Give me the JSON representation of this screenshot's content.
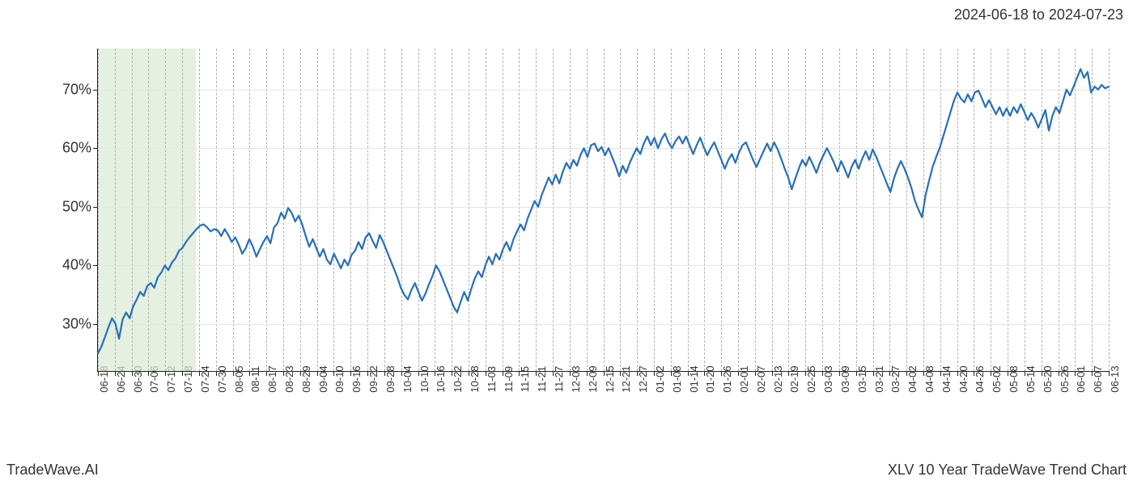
{
  "header": {
    "date_range": "2024-06-18 to 2024-07-23"
  },
  "footer": {
    "brand": "TradeWave.AI",
    "caption": "XLV 10 Year TradeWave Trend Chart"
  },
  "chart": {
    "type": "line",
    "background_color": "#ffffff",
    "grid_color_v": "#b0b0b0",
    "grid_color_h": "#e5e5e5",
    "axis_color": "#222222",
    "label_color": "#333333",
    "label_fontsize_y": 18,
    "label_fontsize_x": 13,
    "highlight": {
      "color": "#d9ead3",
      "opacity": 0.7,
      "from_idx": 0,
      "to_idx": 5.8
    },
    "y_axis": {
      "min": 22,
      "max": 77,
      "ticks": [
        30,
        40,
        50,
        60,
        70
      ],
      "tick_format_suffix": "%"
    },
    "x_axis": {
      "labels": [
        "06-18",
        "06-24",
        "06-30",
        "07-06",
        "07-12",
        "07-18",
        "07-24",
        "07-30",
        "08-05",
        "08-11",
        "08-17",
        "08-23",
        "08-29",
        "09-04",
        "09-10",
        "09-16",
        "09-22",
        "09-28",
        "10-04",
        "10-10",
        "10-16",
        "10-22",
        "10-28",
        "11-03",
        "11-09",
        "11-15",
        "11-21",
        "11-27",
        "12-03",
        "12-09",
        "12-15",
        "12-21",
        "12-27",
        "01-02",
        "01-08",
        "01-14",
        "01-20",
        "01-26",
        "02-01",
        "02-07",
        "02-13",
        "02-19",
        "02-25",
        "03-03",
        "03-09",
        "03-15",
        "03-21",
        "03-27",
        "04-02",
        "04-08",
        "04-14",
        "04-20",
        "04-26",
        "05-02",
        "05-08",
        "05-14",
        "05-20",
        "05-26",
        "06-01",
        "06-07",
        "06-13"
      ]
    },
    "series": {
      "color": "#2a6fb5",
      "line_width": 2.2,
      "values": [
        25.0,
        26.2,
        27.8,
        29.5,
        31.0,
        30.0,
        27.5,
        30.8,
        32.0,
        31.0,
        33.0,
        34.2,
        35.5,
        34.8,
        36.5,
        37.0,
        36.2,
        38.0,
        38.8,
        40.0,
        39.2,
        40.5,
        41.2,
        42.5,
        43.0,
        44.0,
        44.8,
        45.5,
        46.2,
        46.8,
        47.0,
        46.5,
        45.8,
        46.2,
        46.0,
        45.0,
        46.2,
        45.2,
        44.0,
        44.8,
        43.5,
        42.0,
        43.0,
        44.5,
        43.2,
        41.5,
        42.8,
        44.0,
        45.0,
        43.8,
        46.5,
        47.2,
        49.0,
        48.0,
        49.8,
        49.0,
        47.5,
        48.5,
        47.0,
        45.0,
        43.2,
        44.5,
        43.0,
        41.5,
        42.8,
        41.0,
        40.2,
        42.0,
        40.8,
        39.5,
        41.0,
        40.0,
        41.8,
        42.5,
        44.0,
        42.8,
        44.8,
        45.5,
        44.2,
        43.0,
        45.2,
        44.0,
        42.5,
        41.0,
        39.5,
        38.0,
        36.2,
        35.0,
        34.2,
        35.8,
        37.0,
        35.5,
        34.0,
        35.2,
        36.8,
        38.2,
        40.0,
        39.0,
        37.5,
        36.0,
        34.5,
        33.0,
        32.0,
        33.8,
        35.5,
        34.0,
        36.0,
        37.8,
        39.0,
        38.0,
        40.0,
        41.5,
        40.2,
        42.0,
        41.0,
        42.8,
        44.0,
        42.5,
        44.5,
        45.8,
        47.0,
        46.0,
        48.0,
        49.5,
        51.0,
        50.0,
        52.0,
        53.5,
        55.0,
        53.8,
        55.5,
        54.0,
        56.0,
        57.5,
        56.5,
        58.0,
        57.0,
        58.8,
        60.0,
        58.5,
        60.5,
        60.8,
        59.5,
        60.2,
        58.8,
        60.0,
        58.5,
        57.0,
        55.2,
        57.0,
        55.8,
        57.5,
        58.8,
        60.0,
        59.0,
        60.8,
        62.0,
        60.5,
        61.8,
        60.0,
        61.5,
        62.5,
        61.0,
        60.0,
        61.2,
        62.0,
        60.8,
        62.0,
        60.5,
        59.0,
        60.5,
        61.8,
        60.2,
        58.8,
        60.0,
        61.0,
        59.5,
        58.0,
        56.5,
        58.0,
        59.0,
        57.5,
        59.2,
        60.5,
        61.0,
        59.5,
        58.0,
        56.8,
        58.2,
        59.5,
        60.8,
        59.5,
        61.0,
        59.8,
        58.2,
        56.5,
        55.0,
        53.0,
        54.8,
        56.5,
        58.0,
        57.0,
        58.5,
        57.2,
        55.8,
        57.5,
        58.8,
        60.0,
        58.8,
        57.5,
        56.0,
        57.8,
        56.5,
        55.0,
        56.8,
        58.0,
        56.5,
        58.2,
        59.5,
        58.0,
        59.8,
        58.5,
        57.0,
        55.5,
        54.0,
        52.5,
        54.8,
        56.5,
        57.8,
        56.5,
        55.0,
        53.2,
        51.0,
        49.5,
        48.2,
        52.0,
        54.5,
        56.8,
        58.5,
        60.0,
        62.0,
        64.0,
        66.0,
        68.0,
        69.5,
        68.5,
        67.8,
        69.2,
        68.0,
        69.5,
        69.8,
        68.5,
        67.0,
        68.2,
        67.0,
        65.8,
        67.0,
        65.5,
        66.8,
        65.5,
        67.0,
        66.0,
        67.5,
        66.2,
        64.8,
        66.0,
        65.0,
        63.5,
        65.0,
        66.5,
        63.0,
        65.5,
        67.0,
        66.0,
        68.0,
        70.0,
        69.0,
        70.5,
        72.0,
        73.5,
        72.0,
        73.0,
        69.5,
        70.5,
        70.0,
        70.8,
        70.2,
        70.5
      ]
    }
  }
}
